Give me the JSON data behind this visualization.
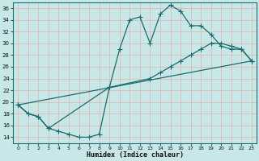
{
  "title": "",
  "xlabel": "Humidex (Indice chaleur)",
  "bg_color": "#c8e8e8",
  "grid_color": "#e0b8b8",
  "line_color": "#1a6b6b",
  "xlim": [
    -0.5,
    23.5
  ],
  "ylim": [
    13,
    37
  ],
  "yticks": [
    14,
    16,
    18,
    20,
    22,
    24,
    26,
    28,
    30,
    32,
    34,
    36
  ],
  "xticks": [
    0,
    1,
    2,
    3,
    4,
    5,
    6,
    7,
    8,
    9,
    10,
    11,
    12,
    13,
    14,
    15,
    16,
    17,
    18,
    19,
    20,
    21,
    22,
    23
  ],
  "line1_x": [
    0,
    1,
    2,
    3,
    4,
    5,
    6,
    7,
    8,
    9,
    10,
    11,
    12,
    13,
    14,
    15,
    16,
    17,
    18,
    19,
    20,
    21,
    22,
    23
  ],
  "line1_y": [
    19.5,
    18.0,
    17.5,
    15.5,
    15.0,
    14.5,
    14.0,
    14.0,
    14.5,
    22.5,
    29.0,
    34.0,
    34.5,
    30.0,
    35.0,
    36.5,
    35.5,
    33.0,
    33.0,
    31.5,
    29.5,
    29.0,
    29.0,
    27.0
  ],
  "line2_x": [
    0,
    1,
    2,
    3,
    9,
    13,
    14,
    15,
    16,
    17,
    18,
    19,
    20,
    21,
    22,
    23
  ],
  "line2_y": [
    19.5,
    18.0,
    17.5,
    15.5,
    22.5,
    24.0,
    25.0,
    26.0,
    27.0,
    28.0,
    29.0,
    30.0,
    30.0,
    29.5,
    29.0,
    27.0
  ],
  "line3_x": [
    0,
    23
  ],
  "line3_y": [
    19.5,
    27.0
  ],
  "markersize": 2.5,
  "lw": 0.9
}
